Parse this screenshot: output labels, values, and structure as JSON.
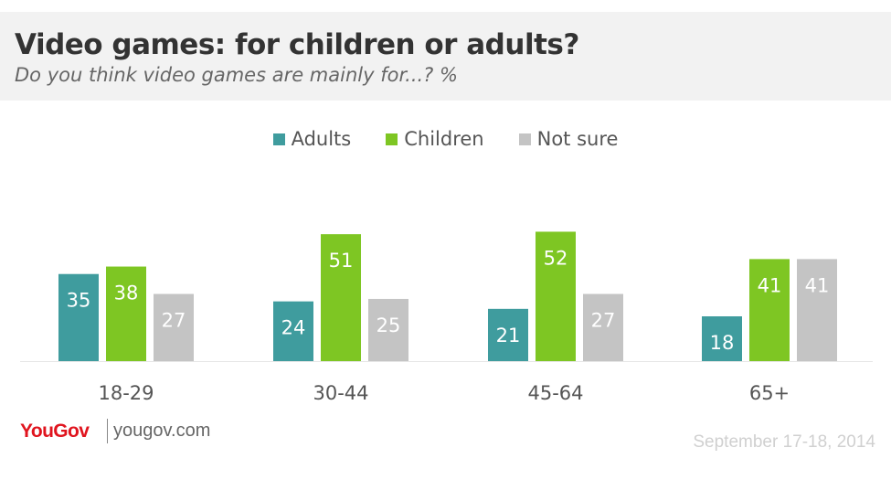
{
  "header": {
    "title": "Video games: for children or adults?",
    "subtitle": "Do you think video games are mainly for...? %"
  },
  "footer": {
    "logo": "YouGov",
    "url": "yougov.com",
    "date": "September 17-18, 2014"
  },
  "chart_data": {
    "type": "bar",
    "categories": [
      "18-29",
      "30-44",
      "45-64",
      "65+"
    ],
    "series": [
      {
        "name": "Adults",
        "color": "#3f9c9e",
        "values": [
          35,
          24,
          21,
          18
        ]
      },
      {
        "name": "Children",
        "color": "#7ec623",
        "values": [
          38,
          51,
          52,
          41
        ]
      },
      {
        "name": "Not sure",
        "color": "#c4c4c4",
        "values": [
          27,
          25,
          27,
          41
        ]
      }
    ],
    "ylim": [
      0,
      54
    ],
    "legend_position": "top-center",
    "grid": false
  }
}
